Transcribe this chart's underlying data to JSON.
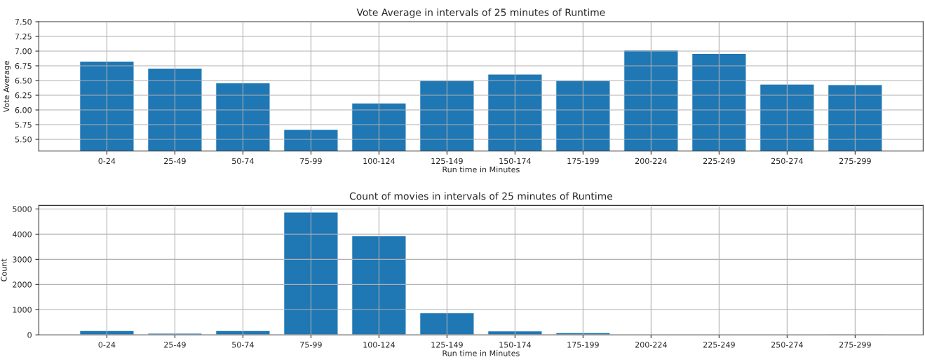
{
  "chart_data": [
    {
      "type": "bar",
      "title": "Vote Average in intervals of 25 minutes of Runtime",
      "xlabel": "Run time in Minutes",
      "ylabel": "Vote Average",
      "categories": [
        "0-24",
        "25-49",
        "50-74",
        "75-99",
        "100-124",
        "125-149",
        "150-174",
        "175-199",
        "200-224",
        "225-249",
        "250-274",
        "275-299"
      ],
      "values": [
        6.83,
        6.71,
        6.46,
        5.67,
        6.12,
        6.5,
        6.61,
        6.5,
        7.02,
        6.96,
        6.44,
        6.43
      ],
      "color": "#1f77b4",
      "ylim": [
        5.3,
        7.5
      ],
      "yticks": [
        {
          "value": 5.5,
          "label": "5.50"
        },
        {
          "value": 5.75,
          "label": "5.75"
        },
        {
          "value": 6.0,
          "label": "6.00"
        },
        {
          "value": 6.25,
          "label": "6.25"
        },
        {
          "value": 6.5,
          "label": "6.50"
        },
        {
          "value": 6.75,
          "label": "6.75"
        },
        {
          "value": 7.0,
          "label": "7.00"
        },
        {
          "value": 7.25,
          "label": "7.25"
        },
        {
          "value": 7.5,
          "label": "7.50"
        }
      ],
      "grid": true
    },
    {
      "type": "bar",
      "title": "Count of movies in intervals of 25 minutes of Runtime",
      "xlabel": "Run time in Minutes",
      "ylabel": "Count",
      "categories": [
        "0-24",
        "25-49",
        "50-74",
        "75-99",
        "100-124",
        "125-149",
        "150-174",
        "175-199",
        "200-224",
        "225-249",
        "250-274",
        "275-299"
      ],
      "values": [
        170,
        70,
        170,
        4880,
        3940,
        880,
        160,
        90,
        20,
        20,
        20,
        10
      ],
      "color": "#1f77b4",
      "ylim": [
        0,
        5140
      ],
      "yticks": [
        0,
        1000,
        2000,
        3000,
        4000,
        5000
      ],
      "grid": true
    }
  ]
}
